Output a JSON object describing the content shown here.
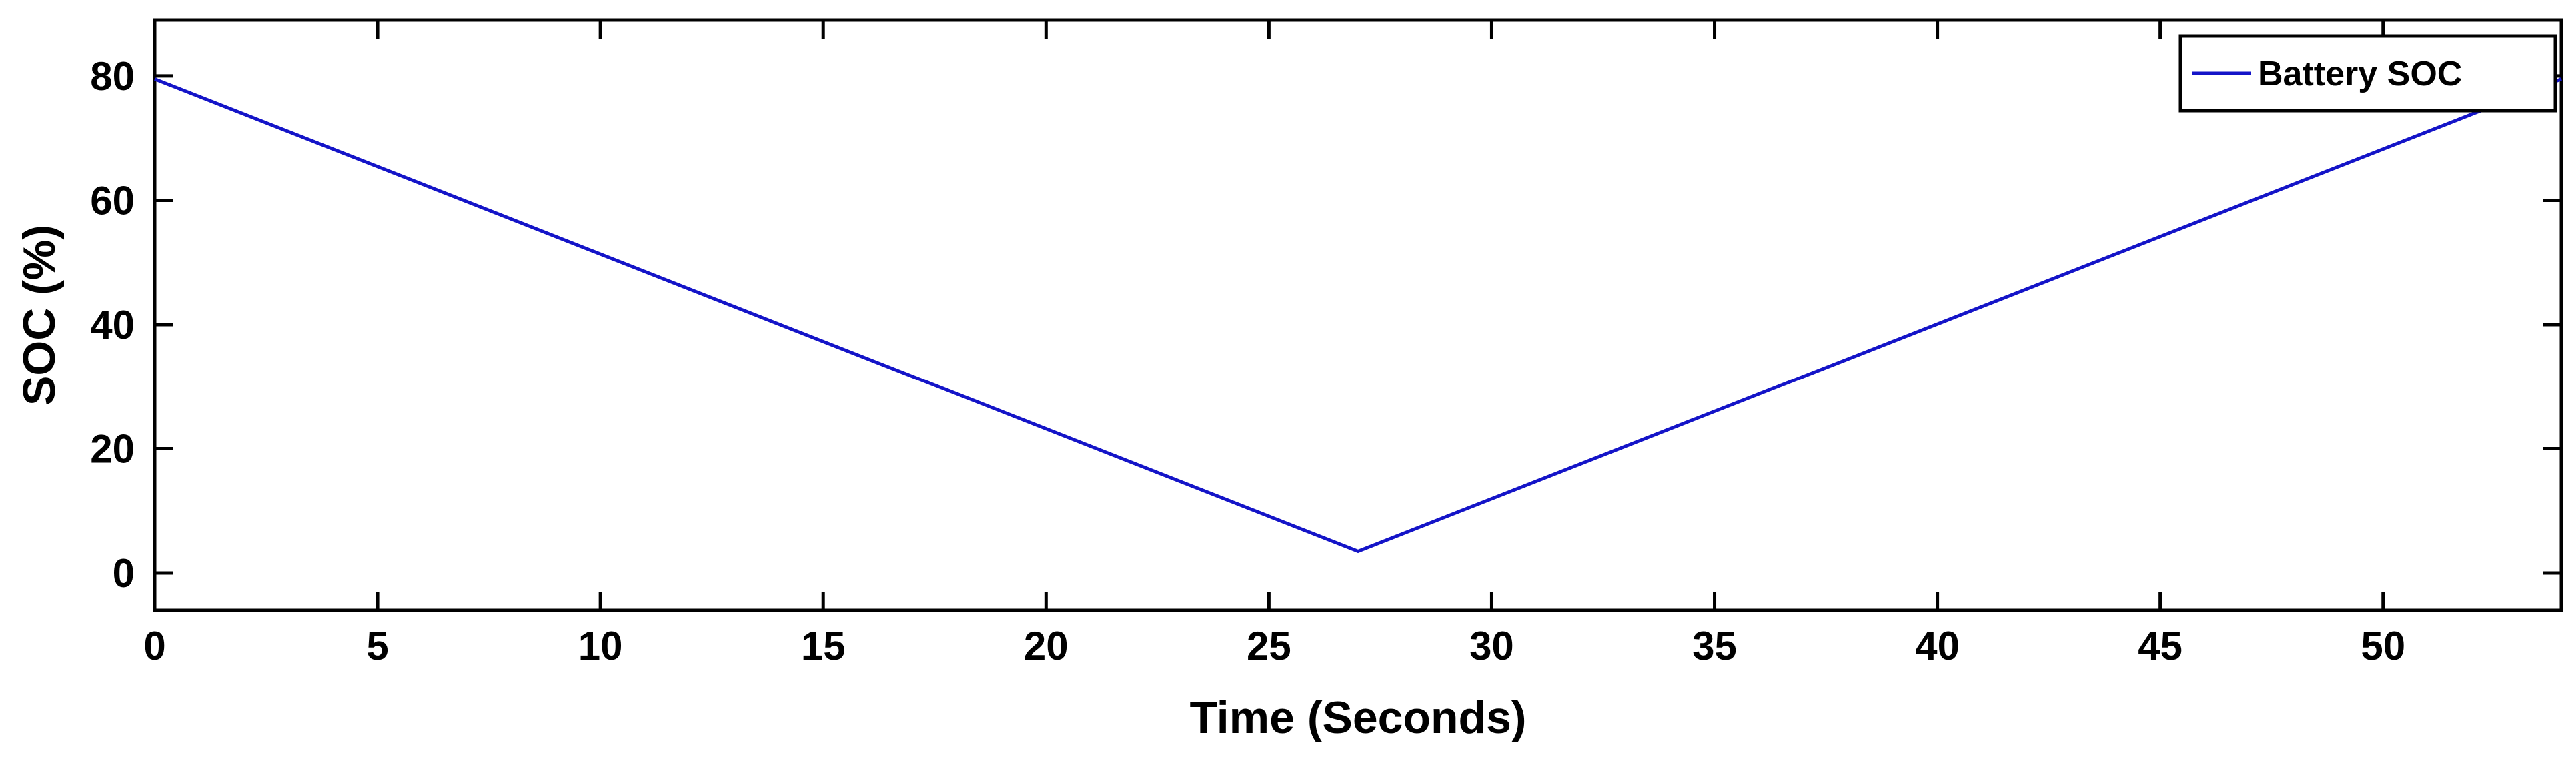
{
  "chart_data": {
    "type": "line",
    "title": "",
    "xlabel": "Time (Seconds)",
    "ylabel": "SOC (%)",
    "xlim": [
      0,
      54
    ],
    "ylim": [
      -6,
      89
    ],
    "xticks": [
      0,
      5,
      10,
      15,
      20,
      25,
      30,
      35,
      40,
      45,
      50
    ],
    "yticks": [
      0,
      20,
      40,
      60,
      80
    ],
    "grid": false,
    "legend": {
      "position": "top-right"
    },
    "series": [
      {
        "name": "Battery SOC",
        "color": "#1414c8",
        "x": [
          0,
          27,
          54
        ],
        "y": [
          79.5,
          3.5,
          79.5
        ]
      }
    ]
  }
}
